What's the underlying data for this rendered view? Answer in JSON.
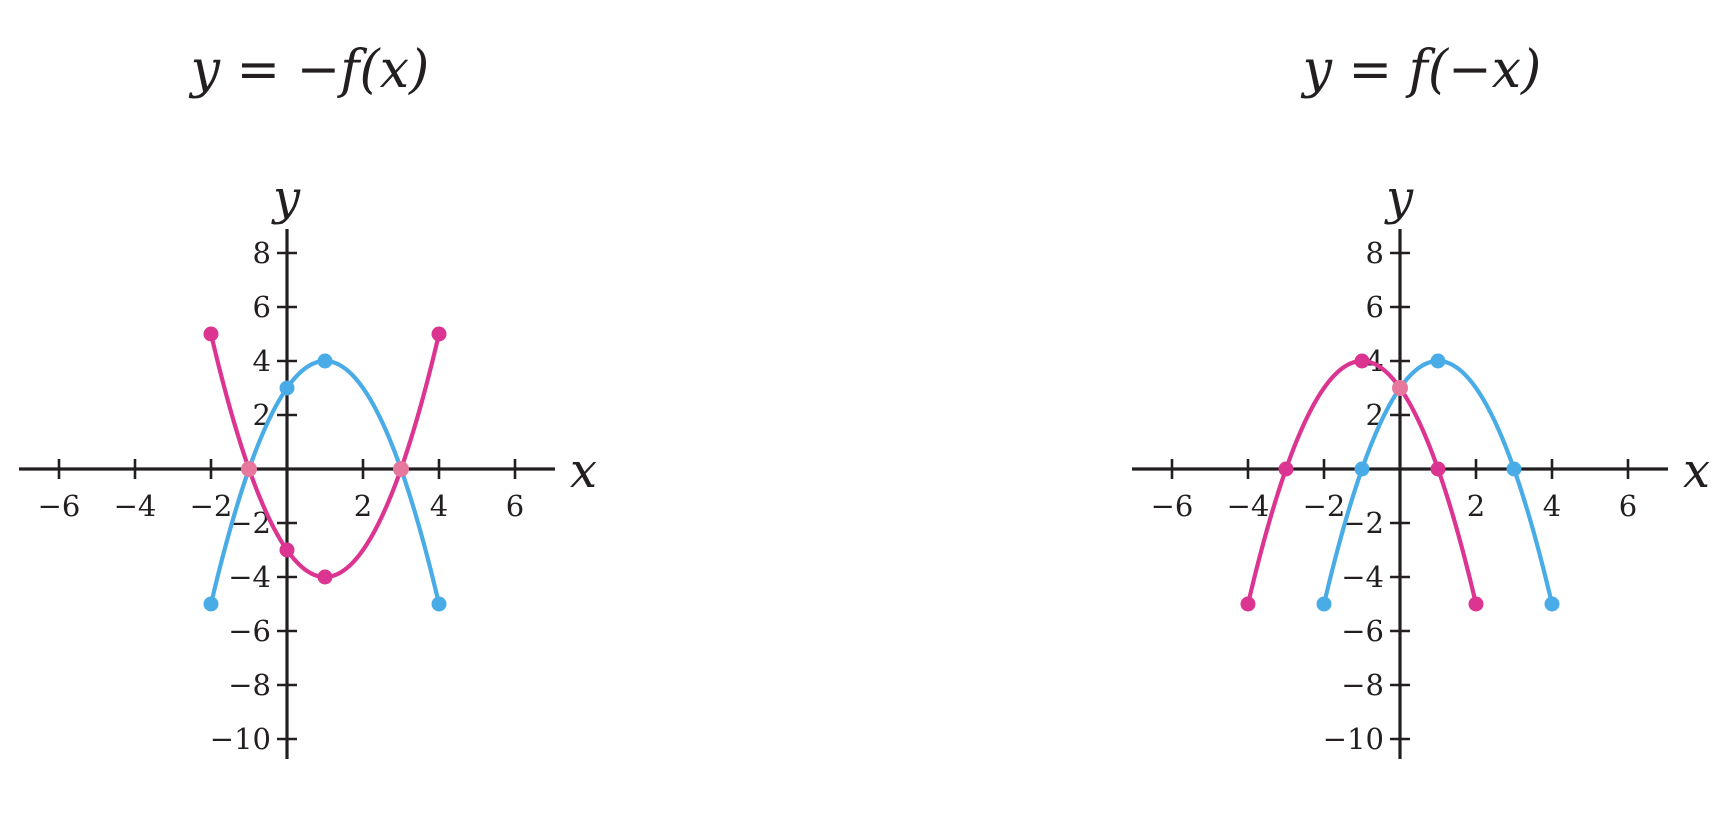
{
  "colors": {
    "axis": "#231f20",
    "original_curve": "#4aace6",
    "transformed_curve": "#dc3491",
    "intersection_point": "#e6789e"
  },
  "chart_data": [
    {
      "type": "line",
      "title": "y = −f(x)",
      "xlabel": "x",
      "ylabel": "y",
      "xlim": [
        -7,
        7
      ],
      "ylim": [
        -11,
        9
      ],
      "xticks": [
        -6,
        -4,
        -2,
        2,
        4,
        6
      ],
      "yticks": [
        8,
        6,
        4,
        2,
        -2,
        -4,
        -6,
        -8,
        -10
      ],
      "grid": false,
      "series": [
        {
          "role": "original",
          "color": "#4aace6",
          "x": [
            -2,
            -1,
            0,
            1,
            2,
            3,
            4
          ],
          "y": [
            -5,
            0,
            3,
            4,
            3,
            0,
            -5
          ],
          "marked_points": [
            [
              -2,
              -5
            ],
            [
              0,
              3
            ],
            [
              1,
              4
            ],
            [
              4,
              -5
            ]
          ]
        },
        {
          "role": "transformed",
          "color": "#dc3491",
          "x": [
            -2,
            -1,
            0,
            1,
            2,
            3,
            4
          ],
          "y": [
            5,
            0,
            -3,
            -4,
            -3,
            0,
            5
          ],
          "marked_points": [
            [
              -2,
              5
            ],
            [
              0,
              -3
            ],
            [
              1,
              -4
            ],
            [
              4,
              5
            ]
          ]
        }
      ],
      "shared_points": [
        [
          -1,
          0
        ],
        [
          3,
          0
        ]
      ]
    },
    {
      "type": "line",
      "title": "y = f(−x)",
      "xlabel": "x",
      "ylabel": "y",
      "xlim": [
        -7,
        7
      ],
      "ylim": [
        -11,
        9
      ],
      "xticks": [
        -6,
        -4,
        -2,
        2,
        4,
        6
      ],
      "yticks": [
        8,
        6,
        4,
        2,
        -2,
        -4,
        -6,
        -8,
        -10
      ],
      "grid": false,
      "series": [
        {
          "role": "original",
          "color": "#4aace6",
          "x": [
            -2,
            -1,
            0,
            1,
            2,
            3,
            4
          ],
          "y": [
            -5,
            0,
            3,
            4,
            3,
            0,
            -5
          ],
          "marked_points": [
            [
              -2,
              -5
            ],
            [
              -1,
              0
            ],
            [
              1,
              4
            ],
            [
              3,
              0
            ],
            [
              4,
              -5
            ]
          ]
        },
        {
          "role": "transformed",
          "color": "#dc3491",
          "x": [
            -4,
            -3,
            -2,
            -1,
            0,
            1,
            2
          ],
          "y": [
            -5,
            0,
            3,
            4,
            3,
            0,
            -5
          ],
          "marked_points": [
            [
              -4,
              -5
            ],
            [
              -3,
              0
            ],
            [
              -1,
              4
            ],
            [
              1,
              0
            ],
            [
              2,
              -5
            ]
          ]
        }
      ],
      "shared_points": [
        [
          0,
          3
        ]
      ]
    }
  ]
}
